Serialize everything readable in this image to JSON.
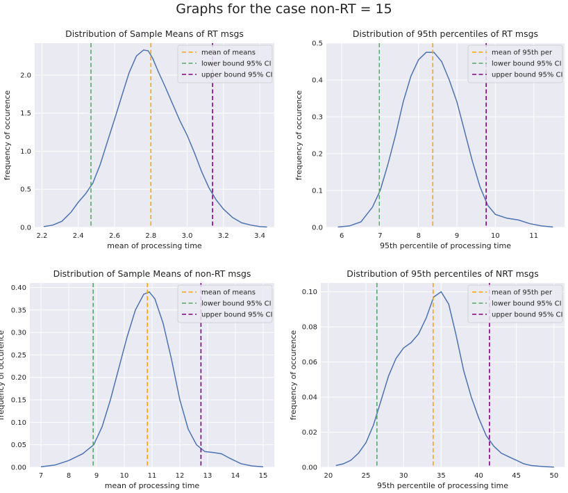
{
  "figure": {
    "title": "Graphs for the case non-RT = 15"
  },
  "colors": {
    "background": "#eaeaf2",
    "grid": "#ffffff",
    "kde": "#4c72b0",
    "mean": "#ffa500",
    "lower": "#55a868",
    "upper": "#800080"
  },
  "chart_data": [
    {
      "type": "line",
      "title": "Distribution of Sample Means of RT msgs",
      "xlabel": "mean of processing time",
      "ylabel": "frequency of occurence",
      "xlim": [
        2.16,
        3.48
      ],
      "ylim": [
        0,
        2.42
      ],
      "xticks": [
        2.2,
        2.4,
        2.6,
        2.8,
        3.0,
        3.2,
        3.4
      ],
      "xtick_labels": [
        "2.2",
        "2.4",
        "2.6",
        "2.8",
        "3.0",
        "3.2",
        "3.4"
      ],
      "yticks": [
        0,
        0.5,
        1.0,
        1.5,
        2.0
      ],
      "ytick_labels": [
        "0.0",
        "0.5",
        "1.0",
        "1.5",
        "2.0"
      ],
      "series": [
        {
          "x": [
            2.21,
            2.26,
            2.31,
            2.36,
            2.4,
            2.44,
            2.48,
            2.52,
            2.56,
            2.6,
            2.64,
            2.68,
            2.72,
            2.76,
            2.785,
            2.81,
            2.84,
            2.88,
            2.92,
            2.96,
            3.0,
            3.04,
            3.08,
            3.12,
            3.16,
            3.2,
            3.25,
            3.3,
            3.35,
            3.4,
            3.44
          ],
          "y": [
            0.01,
            0.03,
            0.08,
            0.2,
            0.33,
            0.44,
            0.58,
            0.82,
            1.12,
            1.42,
            1.73,
            2.03,
            2.25,
            2.33,
            2.32,
            2.22,
            2.05,
            1.84,
            1.62,
            1.4,
            1.21,
            0.98,
            0.73,
            0.52,
            0.36,
            0.24,
            0.13,
            0.06,
            0.03,
            0.01,
            0.005
          ]
        }
      ],
      "vlines": [
        {
          "label": "mean of means",
          "x": 2.8,
          "color": "#ffa500"
        },
        {
          "label": "lower bound 95% CI",
          "x": 2.47,
          "color": "#55a868"
        },
        {
          "label": "upper bound 95% CI",
          "x": 3.14,
          "color": "#800080"
        }
      ],
      "legend": "top-right"
    },
    {
      "type": "line",
      "title": "Distribution of 95th percentiles of RT msgs",
      "xlabel": "95th percentile of processing time",
      "ylabel": "frequency of occurence",
      "xlim": [
        5.6,
        11.8
      ],
      "ylim": [
        0,
        0.5
      ],
      "xticks": [
        6,
        7,
        8,
        9,
        10,
        11
      ],
      "xtick_labels": [
        "6",
        "7",
        "8",
        "9",
        "10",
        "11"
      ],
      "yticks": [
        0,
        0.1,
        0.2,
        0.3,
        0.4,
        0.5
      ],
      "ytick_labels": [
        "0.0",
        "0.1",
        "0.2",
        "0.3",
        "0.4",
        "0.5"
      ],
      "series": [
        {
          "x": [
            5.9,
            6.2,
            6.5,
            6.8,
            7.0,
            7.2,
            7.4,
            7.6,
            7.8,
            8.0,
            8.2,
            8.4,
            8.6,
            8.8,
            9.0,
            9.2,
            9.4,
            9.6,
            9.8,
            10.0,
            10.3,
            10.6,
            10.9,
            11.2,
            11.5
          ],
          "y": [
            0.001,
            0.004,
            0.015,
            0.055,
            0.1,
            0.17,
            0.25,
            0.34,
            0.41,
            0.455,
            0.475,
            0.475,
            0.45,
            0.4,
            0.34,
            0.26,
            0.18,
            0.11,
            0.06,
            0.035,
            0.025,
            0.02,
            0.01,
            0.004,
            0.001
          ]
        }
      ],
      "vlines": [
        {
          "label": "mean of 95th per",
          "x": 8.37,
          "color": "#ffa500"
        },
        {
          "label": "lower bound 95% CI",
          "x": 6.98,
          "color": "#55a868"
        },
        {
          "label": "upper bound 95% CI",
          "x": 9.76,
          "color": "#800080"
        }
      ],
      "legend": "top-right"
    },
    {
      "type": "line",
      "title": "Distribution of Sample Means of non-RT msgs",
      "xlabel": "mean of processing time",
      "ylabel": "frequency of occurence",
      "xlim": [
        6.6,
        15.4
      ],
      "ylim": [
        0,
        0.41
      ],
      "xticks": [
        7,
        8,
        9,
        10,
        11,
        12,
        13,
        14,
        15
      ],
      "xtick_labels": [
        "7",
        "8",
        "9",
        "10",
        "11",
        "12",
        "13",
        "14",
        "15"
      ],
      "yticks": [
        0,
        0.05,
        0.1,
        0.15,
        0.2,
        0.25,
        0.3,
        0.35,
        0.4
      ],
      "ytick_labels": [
        "0.00",
        "0.05",
        "0.10",
        "0.15",
        "0.20",
        "0.25",
        "0.30",
        "0.35",
        "0.40"
      ],
      "series": [
        {
          "x": [
            7.0,
            7.5,
            8.0,
            8.5,
            8.9,
            9.2,
            9.5,
            9.8,
            10.1,
            10.4,
            10.7,
            10.9,
            11.1,
            11.4,
            11.7,
            12.0,
            12.3,
            12.6,
            12.9,
            13.2,
            13.5,
            13.8,
            14.2,
            14.6,
            15.0
          ],
          "y": [
            0.001,
            0.005,
            0.015,
            0.03,
            0.05,
            0.09,
            0.15,
            0.22,
            0.29,
            0.35,
            0.385,
            0.39,
            0.375,
            0.32,
            0.24,
            0.15,
            0.085,
            0.05,
            0.035,
            0.033,
            0.03,
            0.02,
            0.008,
            0.003,
            0.001
          ]
        }
      ],
      "vlines": [
        {
          "label": "mean of means",
          "x": 10.83,
          "color": "#ffa500"
        },
        {
          "label": "lower bound 95% CI",
          "x": 8.88,
          "color": "#55a868"
        },
        {
          "label": "upper bound 95% CI",
          "x": 12.76,
          "color": "#800080"
        }
      ],
      "legend": "top-right"
    },
    {
      "type": "line",
      "title": "Distribution of 95th percentiles of NRT msgs",
      "xlabel": "95th percentile of processing time",
      "ylabel": "frequency of occurence",
      "xlim": [
        19.0,
        51.4
      ],
      "ylim": [
        0,
        0.105
      ],
      "xticks": [
        20,
        25,
        30,
        35,
        40,
        45,
        50
      ],
      "xtick_labels": [
        "20",
        "25",
        "30",
        "35",
        "40",
        "45",
        "50"
      ],
      "yticks": [
        0,
        0.02,
        0.04,
        0.06,
        0.08,
        0.1
      ],
      "ytick_labels": [
        "0.00",
        "0.02",
        "0.04",
        "0.06",
        "0.08",
        "0.10"
      ],
      "series": [
        {
          "x": [
            21,
            22,
            23,
            24,
            25,
            26,
            27,
            28,
            29,
            30,
            31,
            32,
            33,
            34,
            35,
            36,
            37,
            38,
            39,
            40,
            41,
            42,
            43,
            44,
            45,
            46,
            47,
            48,
            49,
            50
          ],
          "y": [
            0.001,
            0.002,
            0.004,
            0.008,
            0.014,
            0.024,
            0.038,
            0.052,
            0.062,
            0.068,
            0.071,
            0.076,
            0.085,
            0.097,
            0.1,
            0.093,
            0.075,
            0.055,
            0.04,
            0.028,
            0.018,
            0.012,
            0.008,
            0.006,
            0.004,
            0.002,
            0.001,
            0.0006,
            0.0003,
            0.0001
          ]
        }
      ],
      "vlines": [
        {
          "label": "mean of 95th per",
          "x": 33.94,
          "color": "#ffa500"
        },
        {
          "label": "lower bound 95% CI",
          "x": 26.46,
          "color": "#55a868"
        },
        {
          "label": "upper bound 95% CI",
          "x": 41.42,
          "color": "#800080"
        }
      ],
      "legend": "top-right"
    }
  ]
}
